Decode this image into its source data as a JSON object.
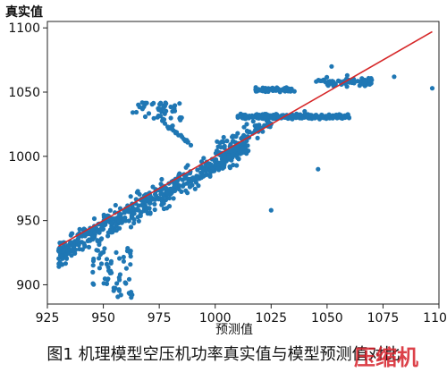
{
  "chart_data": {
    "type": "scatter",
    "ylabel": "真实值",
    "xlabel": "预测值",
    "xlim": [
      925,
      1100
    ],
    "ylim": [
      885,
      1105
    ],
    "x_ticks": [
      "925",
      "950",
      "975",
      "1000",
      "1025",
      "1050",
      "1075",
      "1100"
    ],
    "y_ticks": [
      "900",
      "950",
      "1000",
      "1050",
      "1100"
    ],
    "point_color": "#1f77b4",
    "fit_line_color": "#d62728",
    "fit_line": [
      [
        930,
        930
      ],
      [
        1097,
        1097
      ]
    ]
  },
  "caption": "图1 机理模型空压机功率真实值与模型预测值对比",
  "watermark": "压缩机"
}
